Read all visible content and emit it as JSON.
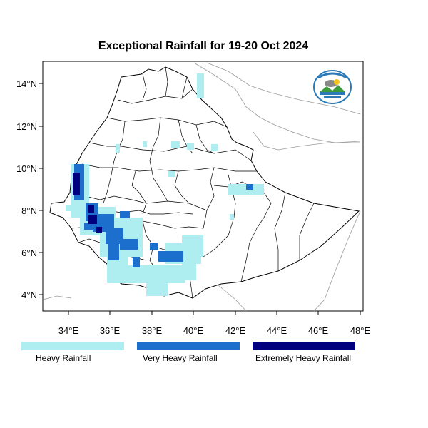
{
  "title": "Exceptional Rainfall for 19-20 Oct 2024",
  "map": {
    "lon_range": [
      32.2,
      48.2
    ],
    "lat_range": [
      3.2,
      15.0
    ],
    "x_ticks": [
      "34°E",
      "36°E",
      "38°E",
      "40°E",
      "42°E",
      "44°E",
      "46°E",
      "48°E"
    ],
    "y_ticks": [
      "4°N",
      "6°N",
      "8°N",
      "10°N",
      "12°N",
      "14°N"
    ]
  },
  "legend": [
    {
      "label": "Heavy Rainfall",
      "color": "#aeeef0"
    },
    {
      "label": "Very Heavy Rainfall",
      "color": "#1c6fcc"
    },
    {
      "label": "Extremely Heavy Rainfall",
      "color": "#00007f"
    }
  ],
  "logo": {
    "label": "agency-logo-icon"
  }
}
